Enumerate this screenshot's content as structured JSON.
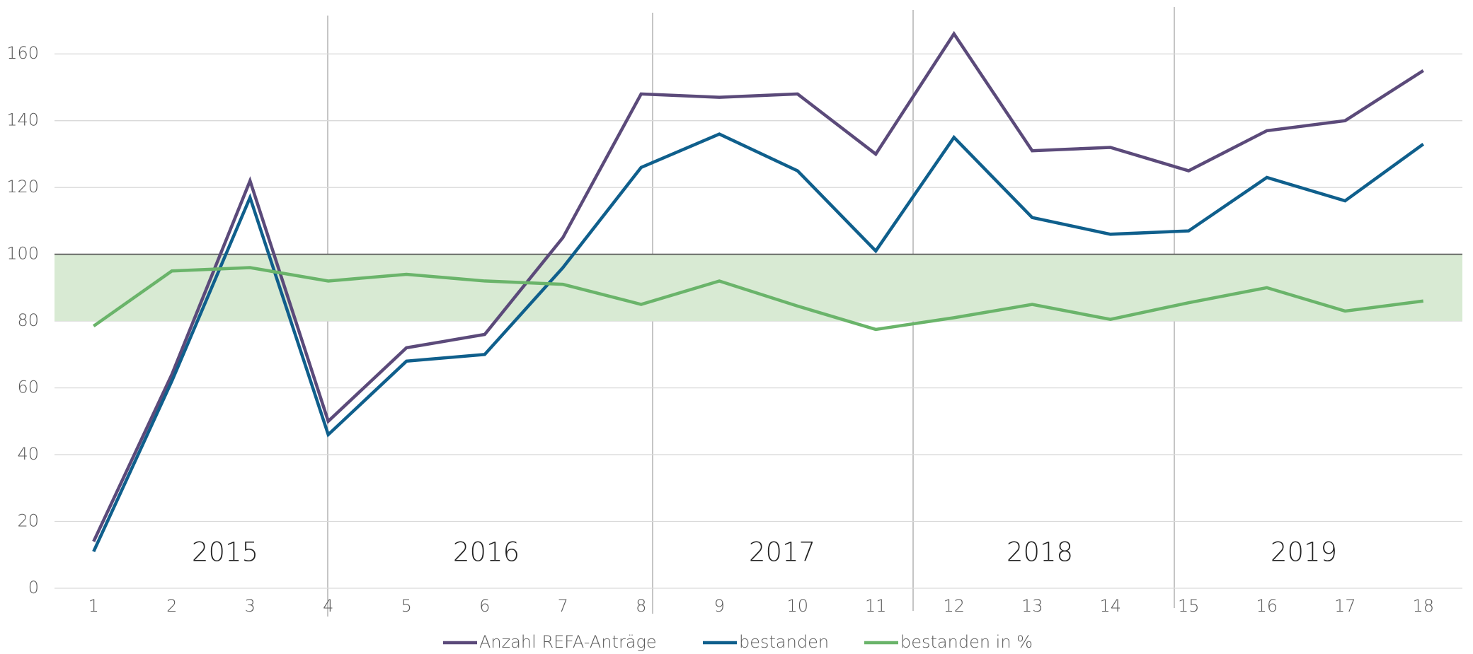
{
  "chart_data": {
    "type": "line",
    "categories": [
      "1",
      "2",
      "3",
      "4",
      "5",
      "6",
      "7",
      "8",
      "9",
      "10",
      "11",
      "12",
      "13",
      "14",
      "15",
      "16",
      "17",
      "18"
    ],
    "series": [
      {
        "name": "Anzahl REFA-Anträge",
        "color": "#5b4a7a",
        "values": [
          14,
          64,
          122,
          50,
          72,
          76,
          105,
          148,
          147,
          148,
          130,
          166,
          131,
          132,
          125,
          137,
          140,
          155
        ]
      },
      {
        "name": "bestanden",
        "color": "#0f5f8c",
        "values": [
          11,
          62,
          117,
          46,
          68,
          70,
          96,
          126,
          136,
          125,
          101,
          135,
          111,
          106,
          107,
          123,
          116,
          133
        ]
      },
      {
        "name": "bestanden in %",
        "color": "#6ab46a",
        "values": [
          78.5,
          95,
          96,
          92,
          94,
          92,
          91,
          85,
          92,
          84.5,
          77.5,
          81,
          85,
          80.5,
          85.5,
          90,
          83,
          86
        ]
      }
    ],
    "annotations": [
      "2015",
      "2016",
      "2017",
      "2018",
      "2019"
    ],
    "highlight_band": [
      80,
      100
    ],
    "ylim": [
      0,
      170
    ],
    "yticks": [
      0,
      20,
      40,
      60,
      80,
      100,
      120,
      140,
      160
    ],
    "grid": true,
    "legend": "bottom"
  }
}
